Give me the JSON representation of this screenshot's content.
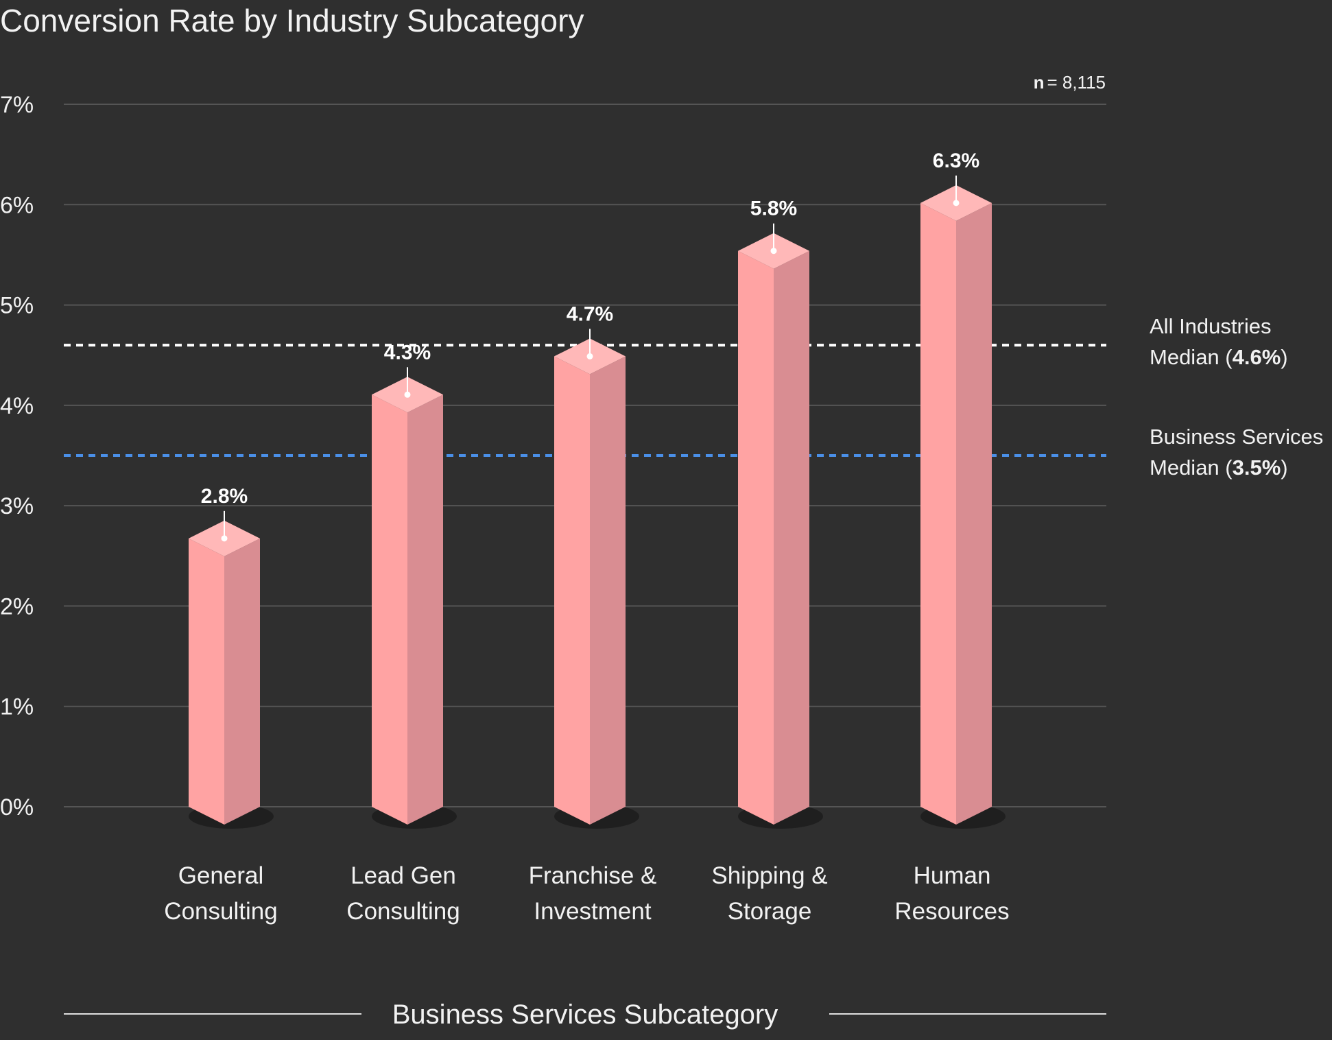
{
  "chart_data": {
    "type": "bar",
    "title": "Conversion Rate by Industry Subcategory",
    "xlabel": "Business Services Subcategory",
    "ylabel": "",
    "sample_size_label": "n",
    "sample_size_value": "= 8,115",
    "y_ticks": [
      "0%",
      "1%",
      "2%",
      "3%",
      "4%",
      "5%",
      "6%",
      "7%"
    ],
    "ylim": [
      0,
      7
    ],
    "grid": true,
    "categories": [
      [
        "General",
        "Consulting"
      ],
      [
        "Lead Gen",
        "Consulting"
      ],
      [
        "Franchise &",
        "Investment"
      ],
      [
        "Shipping &",
        "Storage"
      ],
      [
        "Human",
        "Resources"
      ]
    ],
    "values": [
      2.8,
      4.3,
      4.7,
      5.8,
      6.3
    ],
    "data_labels": [
      "2.8%",
      "4.3%",
      "4.7%",
      "5.8%",
      "6.3%"
    ],
    "reference_lines": [
      {
        "value": 4.6,
        "line1": "All Industries",
        "line2_prefix": "Median (",
        "line2_value": "4.6%",
        "line2_suffix": ")",
        "color": "#ffffff"
      },
      {
        "value": 3.5,
        "line1": "Business Services",
        "line2_prefix": "Median (",
        "line2_value": "3.5%",
        "line2_suffix": ")",
        "color": "#4a8fe7"
      }
    ],
    "colors": {
      "background": "#2f2f2f",
      "bar_front": "#ffa3a3",
      "bar_side": "#d98d92",
      "bar_top": "#ffb8b8",
      "grid": "#555555"
    }
  }
}
